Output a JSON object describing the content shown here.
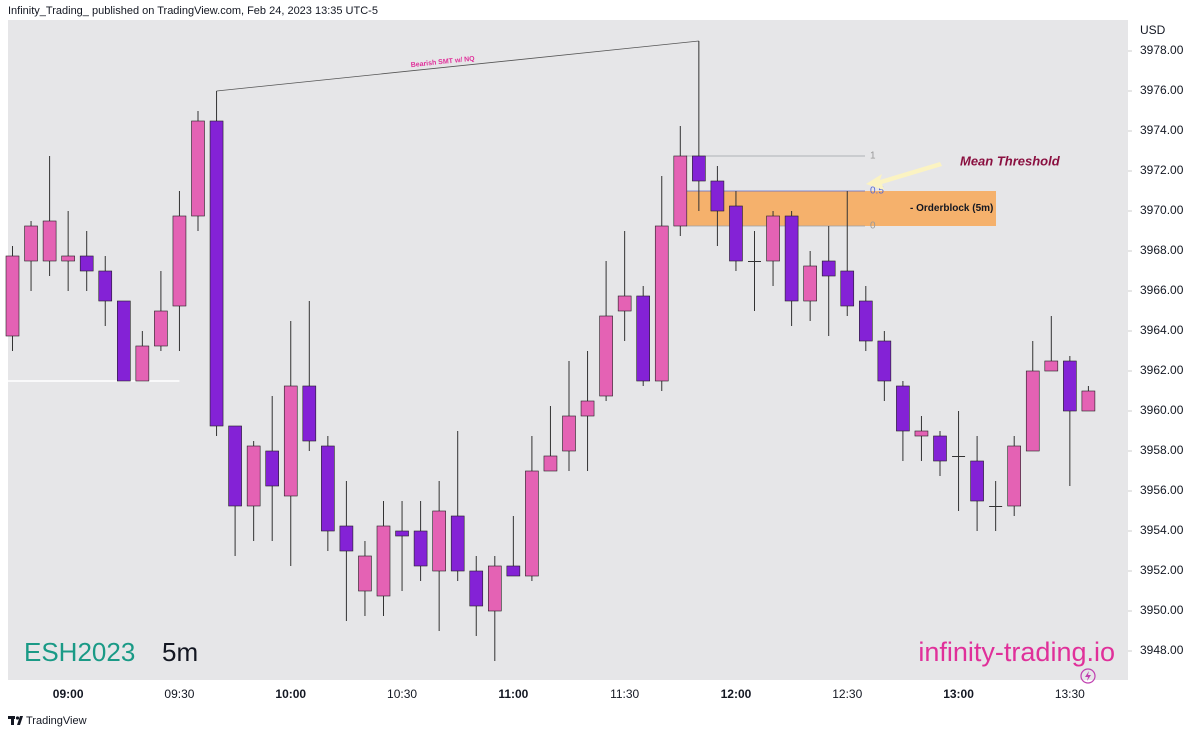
{
  "header": "Infinity_Trading_ published on TradingView.com, Feb 24, 2023 13:35 UTC-5",
  "footer": "TradingView",
  "chart_data": {
    "type": "candlestick",
    "symbol": "ESH2023",
    "interval": "5m",
    "watermark": "infinity-trading.io",
    "currency": "USD",
    "up_color": "#e462b4",
    "down_color": "#8422d6",
    "doji_color": "#333333",
    "wick_color": "#333333",
    "background": "#e6e6e8",
    "categories": [
      null,
      null,
      null,
      "09:00",
      null,
      null,
      null,
      null,
      null,
      "09:30",
      null,
      null,
      null,
      null,
      null,
      "10:00",
      null,
      null,
      null,
      null,
      null,
      "10:30",
      null,
      null,
      null,
      null,
      null,
      "11:00",
      null,
      null,
      null,
      null,
      null,
      "11:30",
      null,
      null,
      null,
      null,
      null,
      "12:00",
      null,
      null,
      null,
      null,
      null,
      "12:30",
      null,
      null,
      null,
      null,
      null,
      "13:00",
      null,
      null,
      null,
      null,
      null,
      "13:30",
      null
    ],
    "open": [
      3963.75,
      3967.5,
      3967.5,
      3967.5,
      3967.75,
      3967,
      3965.5,
      3961.5,
      3963.25,
      3965.25,
      3969.75,
      3974.5,
      3959.25,
      3955.25,
      3958,
      3955.75,
      3961.25,
      3958.25,
      3954.25,
      3951,
      3950.75,
      3954,
      3954,
      3952,
      3954.75,
      3952,
      3950,
      3952.25,
      3951.75,
      3957,
      3958,
      3959.75,
      3960.75,
      3965,
      3965.75,
      3961.5,
      3969.25,
      3972.75,
      3971.5,
      3970.25,
      3967.5,
      3967.5,
      3969.75,
      3965.5,
      3967.5,
      3967,
      3965.5,
      3963.5,
      3961.25,
      3958.75,
      3958.75,
      3957.75,
      3957.5,
      3955.25,
      3955.25,
      3958,
      3962,
      3962.5,
      3960
    ],
    "high": [
      3968.25,
      3969.5,
      3972.75,
      3970,
      3969,
      3967.75,
      3965.5,
      3964,
      3967,
      3971,
      3975,
      3976,
      3959.25,
      3958.5,
      3960.75,
      3964.5,
      3965.5,
      3958.75,
      3956.5,
      3953.5,
      3955.5,
      3955.5,
      3955.5,
      3956.5,
      3959,
      3952.75,
      3952.75,
      3954.75,
      3958.75,
      3960.25,
      3962.5,
      3963,
      3967.5,
      3969,
      3966.25,
      3971.75,
      3974.25,
      3978.5,
      3972.25,
      3971,
      3969,
      3970,
      3970,
      3968,
      3969.25,
      3971,
      3966.25,
      3964,
      3961.5,
      3959.75,
      3959,
      3960,
      3958.75,
      3956.5,
      3958.75,
      3963.5,
      3964.75,
      3962.75,
      3961.25
    ],
    "low": [
      3963,
      3966,
      3966.75,
      3966,
      3966,
      3964.25,
      3961.5,
      3961.5,
      3963,
      3963,
      3969,
      3958.75,
      3952.75,
      3953.5,
      3953.5,
      3952.25,
      3958,
      3953,
      3949.5,
      3949.75,
      3949.75,
      3951,
      3951.5,
      3949,
      3951.5,
      3948.75,
      3947.5,
      3951.75,
      3951.5,
      3957,
      3957,
      3957,
      3960.5,
      3963.5,
      3961.25,
      3961,
      3968.75,
      3970,
      3968.25,
      3967,
      3965,
      3966.25,
      3964.25,
      3964.5,
      3963.75,
      3964.75,
      3963,
      3960.5,
      3957.5,
      3957.5,
      3956.75,
      3955,
      3954,
      3954,
      3954.75,
      3958,
      3962,
      3956.25,
      3960
    ],
    "close": [
      3967.75,
      3969.25,
      3969.5,
      3967.75,
      3967,
      3965.5,
      3961.5,
      3963.25,
      3965,
      3969.75,
      3974.5,
      3959.25,
      3955.25,
      3958.25,
      3956.25,
      3961.25,
      3958.5,
      3954,
      3953,
      3952.75,
      3954.25,
      3953.75,
      3952.25,
      3955,
      3952,
      3950.25,
      3952.25,
      3951.75,
      3957,
      3957.75,
      3959.75,
      3960.5,
      3964.75,
      3965.75,
      3961.5,
      3969.25,
      3972.75,
      3971.5,
      3970,
      3967.5,
      3967.5,
      3969.75,
      3965.5,
      3967.25,
      3966.75,
      3965.25,
      3963.5,
      3961.5,
      3959,
      3959,
      3957.5,
      3957.75,
      3955.5,
      3955.25,
      3958.25,
      3962,
      3962.5,
      3960,
      3961
    ],
    "ylim": [
      3946.55,
      3979.55
    ],
    "yticks": [
      {
        "value": 3948,
        "label": "3948.00"
      },
      {
        "value": 3950,
        "label": "3950.00"
      },
      {
        "value": 3952,
        "label": "3952.00"
      },
      {
        "value": 3954,
        "label": "3954.00"
      },
      {
        "value": 3956,
        "label": "3956.00"
      },
      {
        "value": 3958,
        "label": "3958.00"
      },
      {
        "value": 3960,
        "label": "3960.00"
      },
      {
        "value": 3962,
        "label": "3962.00"
      },
      {
        "value": 3964,
        "label": "3964.00"
      },
      {
        "value": 3966,
        "label": "3966.00"
      },
      {
        "value": 3968,
        "label": "3968.00"
      },
      {
        "value": 3970,
        "label": "3970.00"
      },
      {
        "value": 3972,
        "label": "3972.00"
      },
      {
        "value": 3974,
        "label": "3974.00"
      },
      {
        "value": 3976,
        "label": "3976.00"
      },
      {
        "value": 3978,
        "label": "3978.00"
      }
    ],
    "smt": {
      "text": "Bearish SMT w/ NQ",
      "start_price": 3976,
      "end_price": 3978.5,
      "color": "#e0309a"
    },
    "fib": {
      "levels": [
        1,
        0.5,
        0
      ],
      "top": 3972.75,
      "bottom": 3969.25
    },
    "orderblock": {
      "label": "- Orderblock (5m)",
      "top": 3971,
      "bottom": 3969.25,
      "color": "#f5b16c"
    },
    "mean_threshold": {
      "text": "Mean Threshold",
      "color": "#8a1040"
    },
    "level_line": {
      "price": 3961.5,
      "color": "#ffffff"
    }
  }
}
